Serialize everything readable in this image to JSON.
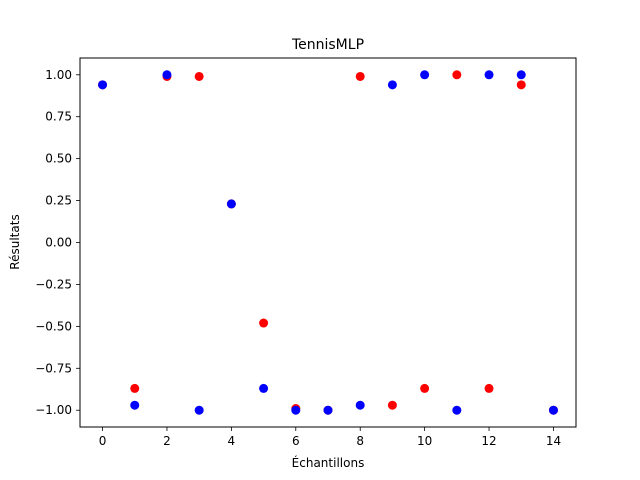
{
  "chart_data": {
    "type": "scatter",
    "title": "TennisMLP",
    "xlabel": "Échantillons",
    "ylabel": "Résultats",
    "xlim": [
      -0.7,
      14.7
    ],
    "ylim": [
      -1.1,
      1.1
    ],
    "xticks": [
      0,
      2,
      4,
      6,
      8,
      10,
      12,
      14
    ],
    "yticks": [
      -1.0,
      -0.75,
      -0.5,
      -0.25,
      0.0,
      0.25,
      0.5,
      0.75,
      1.0
    ],
    "ytick_labels": [
      "−1.00",
      "−0.75",
      "−0.50",
      "−0.25",
      "0.00",
      "0.25",
      "0.50",
      "0.75",
      "1.00"
    ],
    "grid": false,
    "series": [
      {
        "color": "#ff0000",
        "x": [
          0,
          1,
          2,
          3,
          4,
          5,
          6,
          7,
          8,
          9,
          10,
          11,
          12,
          13,
          14
        ],
        "y": [
          0.94,
          -0.87,
          0.99,
          0.99,
          0.23,
          -0.48,
          -0.99,
          -1.0,
          0.99,
          -0.97,
          -0.87,
          1.0,
          -0.87,
          0.94,
          -1.0
        ]
      },
      {
        "color": "#0000ff",
        "x": [
          0,
          1,
          2,
          3,
          4,
          5,
          6,
          7,
          8,
          9,
          10,
          11,
          12,
          13,
          14
        ],
        "y": [
          0.94,
          -0.97,
          1.0,
          -1.0,
          0.23,
          -0.87,
          -1.0,
          -1.0,
          -0.97,
          0.94,
          1.0,
          -1.0,
          1.0,
          1.0,
          -1.0
        ]
      }
    ]
  }
}
